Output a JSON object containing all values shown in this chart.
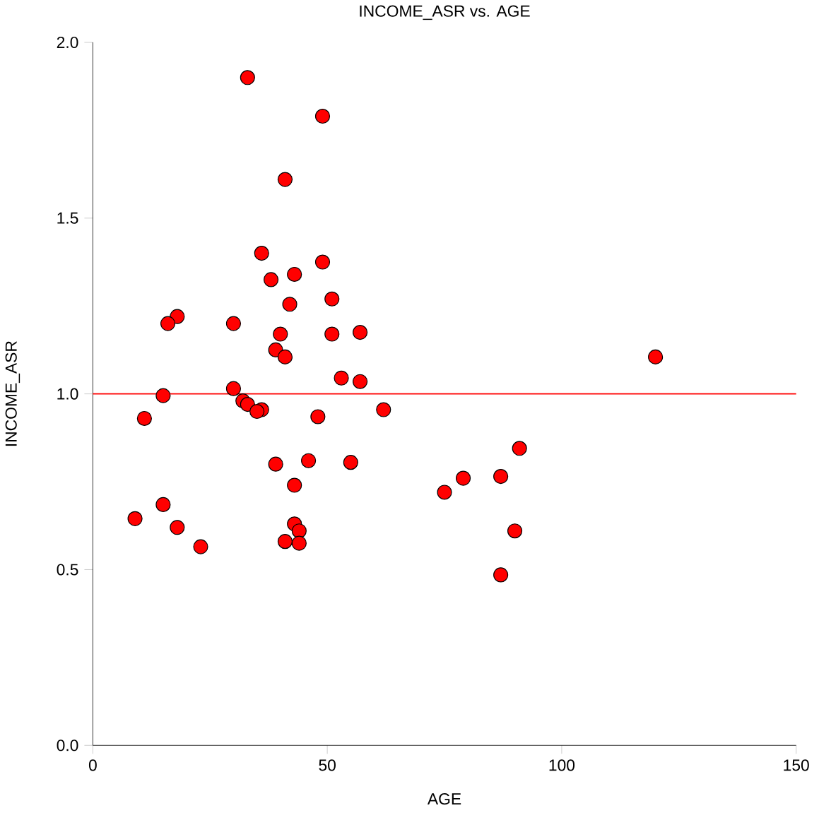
{
  "chart_data": {
    "type": "scatter",
    "title": "INCOME_ASR vs. AGE",
    "xlabel": "AGE",
    "ylabel": "INCOME_ASR",
    "xlim": [
      0,
      150
    ],
    "xticks": [
      0,
      50,
      100,
      150
    ],
    "ylim": [
      0,
      2.0
    ],
    "yticks": [
      {
        "value": 0,
        "label": "0.0"
      },
      {
        "value": 0.5,
        "label": "0.5"
      },
      {
        "value": 1.0,
        "label": "1.0"
      },
      {
        "value": 1.5,
        "label": "1.5"
      },
      {
        "value": 2.0,
        "label": "2.0"
      }
    ],
    "marker": "circle",
    "grid": false,
    "ref_lines": [
      {
        "axis": "y",
        "value": 1.0,
        "color": "#ff0000"
      }
    ],
    "series": [
      {
        "color": "#ff0000",
        "x": [
          33,
          49,
          41,
          36,
          49,
          38,
          43,
          51,
          42,
          18,
          16,
          30,
          40,
          51,
          57,
          39,
          41,
          120,
          53,
          57,
          30,
          15,
          32,
          33,
          36,
          35,
          62,
          48,
          11,
          91,
          46,
          39,
          55,
          87,
          79,
          43,
          75,
          15,
          9,
          43,
          18,
          44,
          90,
          41,
          44,
          23,
          87
        ],
        "values": [
          1.9,
          1.79,
          1.61,
          1.4,
          1.375,
          1.325,
          1.34,
          1.27,
          1.255,
          1.22,
          1.2,
          1.2,
          1.17,
          1.17,
          1.175,
          1.125,
          1.105,
          1.105,
          1.045,
          1.035,
          1.015,
          0.995,
          0.98,
          0.97,
          0.955,
          0.95,
          0.955,
          0.935,
          0.93,
          0.845,
          0.81,
          0.8,
          0.805,
          0.765,
          0.76,
          0.74,
          0.72,
          0.685,
          0.645,
          0.63,
          0.62,
          0.61,
          0.61,
          0.58,
          0.575,
          0.565,
          0.485
        ]
      }
    ]
  }
}
